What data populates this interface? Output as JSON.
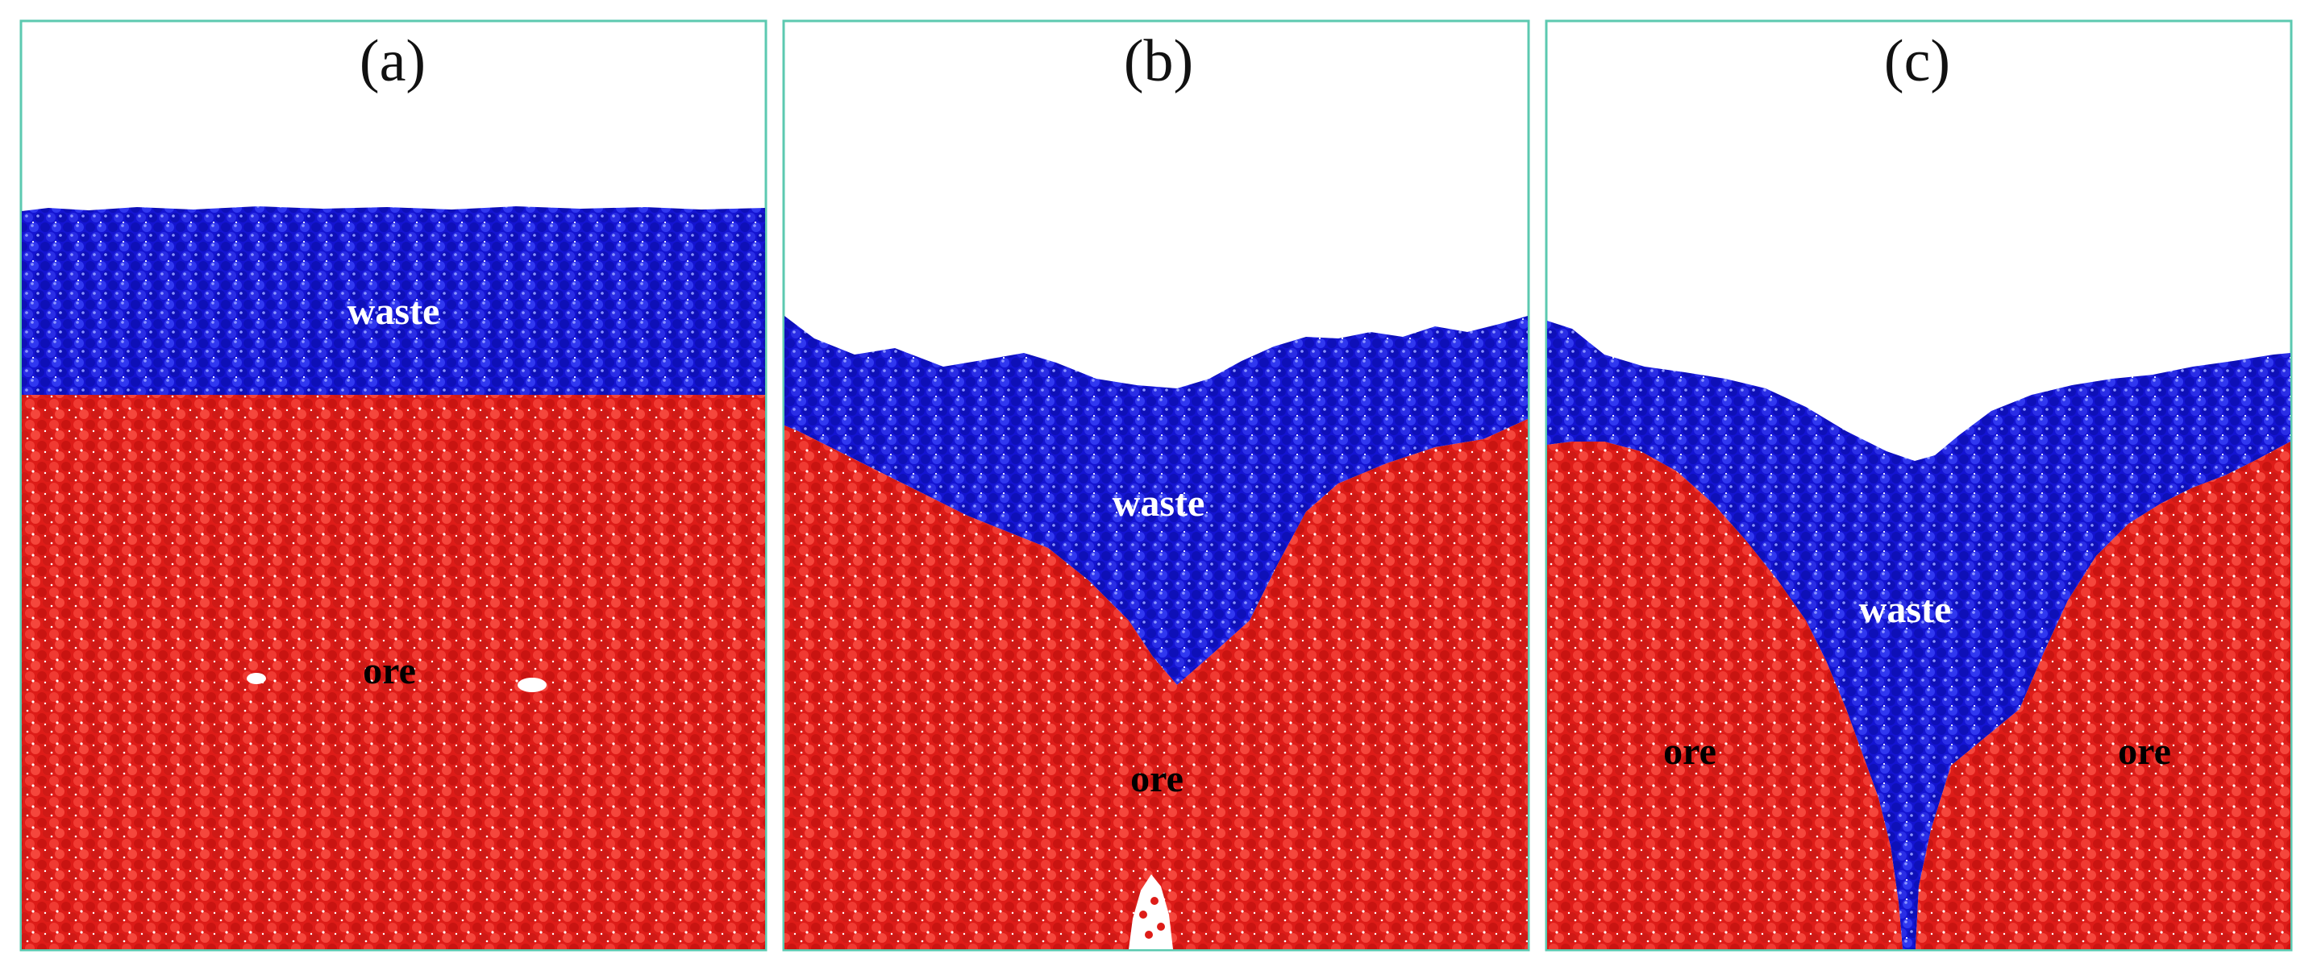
{
  "figure": {
    "panels": [
      {
        "id": "a",
        "label": "(a)",
        "waste_label": "waste",
        "ore_labels": [
          "ore"
        ]
      },
      {
        "id": "b",
        "label": "(b)",
        "waste_label": "waste",
        "ore_labels": [
          "ore"
        ]
      },
      {
        "id": "c",
        "label": "(c)",
        "waste_label": "waste",
        "ore_labels": [
          "ore",
          "ore"
        ]
      }
    ],
    "colors": {
      "frame": "#5cc9b0",
      "waste": "#1414d2",
      "waste_highlight": "#3c46ff",
      "ore": "#de1c18",
      "ore_highlight": "#ff4a40",
      "waste_text": "#ffffff",
      "ore_text": "#000000",
      "background": "#ffffff"
    }
  }
}
